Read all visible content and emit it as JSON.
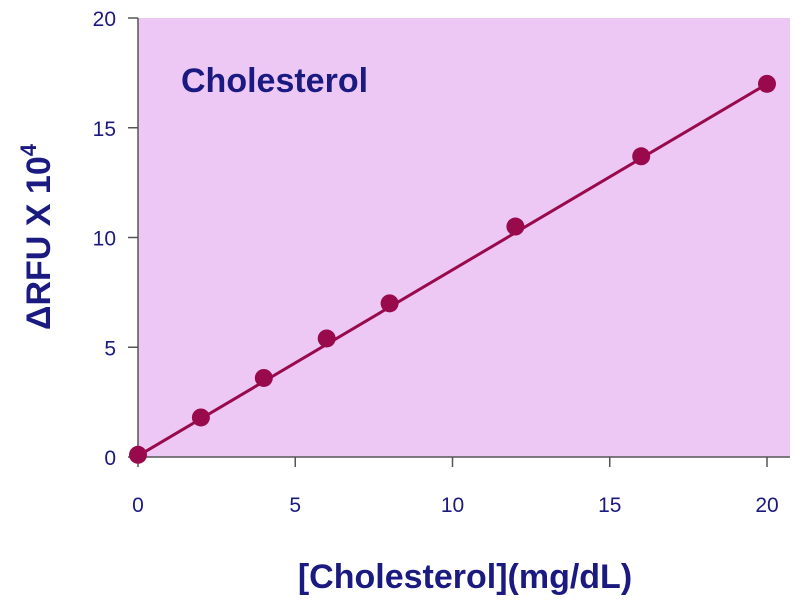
{
  "chart_data": {
    "type": "scatter",
    "title": "Cholesterol",
    "xlabel": "[Cholesterol](mg/dL)",
    "ylabel": {
      "prefix": "ΔRFU X 10",
      "exponent": "4"
    },
    "xlim": [
      0,
      20
    ],
    "ylim": [
      0,
      20
    ],
    "xticks": [
      0,
      5,
      10,
      15,
      20
    ],
    "yticks": [
      0,
      5,
      10,
      15,
      20
    ],
    "grid": false,
    "points": {
      "x": [
        0,
        2,
        4,
        6,
        8,
        12,
        16,
        20
      ],
      "y": [
        0.1,
        1.8,
        3.6,
        5.4,
        7.0,
        10.5,
        13.7,
        17.0
      ]
    },
    "fit_line": {
      "from": [
        0,
        0.05
      ],
      "to": [
        20,
        17.0
      ]
    },
    "colors": {
      "plot_bg": "#edc8f4",
      "marker": "#990a4d",
      "line": "#990a4d",
      "text": "#1a1a80",
      "axis": "#555555"
    }
  }
}
